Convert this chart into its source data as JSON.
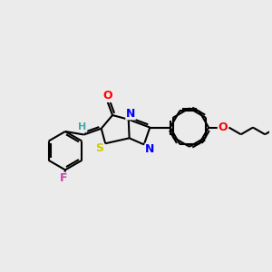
{
  "bg_color": "#ebebeb",
  "atom_colors": {
    "O": "#ff0000",
    "N": "#0000ff",
    "S": "#cccc00",
    "F": "#cc44aa",
    "H": "#44aaaa",
    "C": "#000000"
  },
  "bond_color": "#000000",
  "bond_lw": 1.5,
  "font_size": 9
}
